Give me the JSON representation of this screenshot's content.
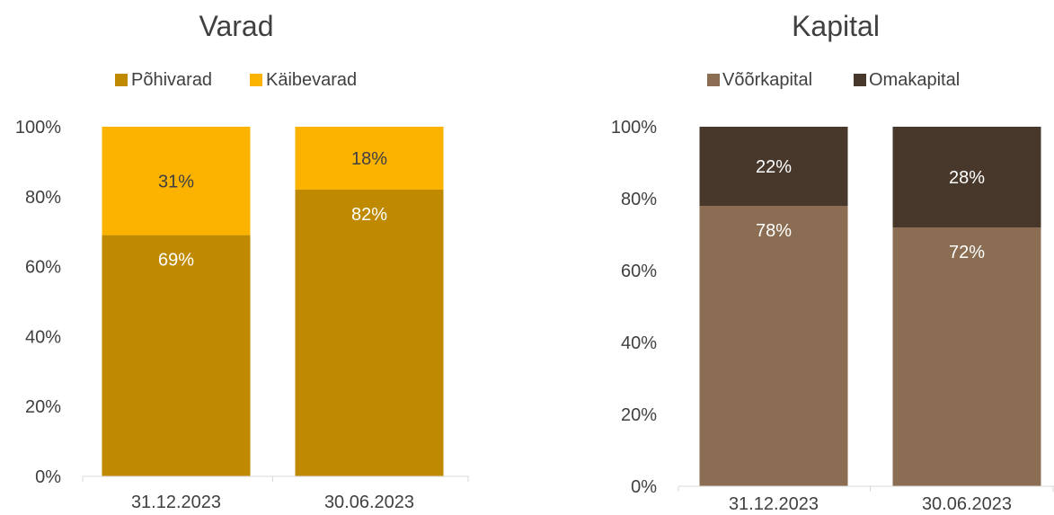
{
  "chart_data": [
    {
      "type": "bar",
      "stacked": true,
      "title": "Varad",
      "categories": [
        "31.12.2023",
        "30.06.2023"
      ],
      "series": [
        {
          "name": "Põhivarad",
          "values": [
            69,
            82
          ],
          "color": "#BF8900",
          "label_color": "#FFFFFF",
          "labels": [
            "69%",
            "82%"
          ]
        },
        {
          "name": "Käibevarad",
          "values": [
            31,
            18
          ],
          "color": "#FBB300",
          "label_color": "#404040",
          "labels": [
            "31%",
            "18%"
          ]
        }
      ],
      "ylim": [
        0,
        100
      ],
      "yticks": [
        "0%",
        "20%",
        "40%",
        "60%",
        "80%",
        "100%"
      ],
      "legend_position": "top",
      "grid": false
    },
    {
      "type": "bar",
      "stacked": true,
      "title": "Kapital",
      "categories": [
        "31.12.2023",
        "30.06.2023"
      ],
      "series": [
        {
          "name": "Võõrkapital",
          "values": [
            78,
            72
          ],
          "color": "#8A6D52",
          "label_color": "#FFFFFF",
          "labels": [
            "78%",
            "72%"
          ]
        },
        {
          "name": "Omakapital",
          "values": [
            22,
            28
          ],
          "color": "#47382B",
          "label_color": "#FFFFFF",
          "labels": [
            "22%",
            "28%"
          ]
        }
      ],
      "ylim": [
        0,
        100
      ],
      "yticks": [
        "0%",
        "20%",
        "40%",
        "60%",
        "80%",
        "100%"
      ],
      "legend_position": "top",
      "grid": false
    }
  ]
}
